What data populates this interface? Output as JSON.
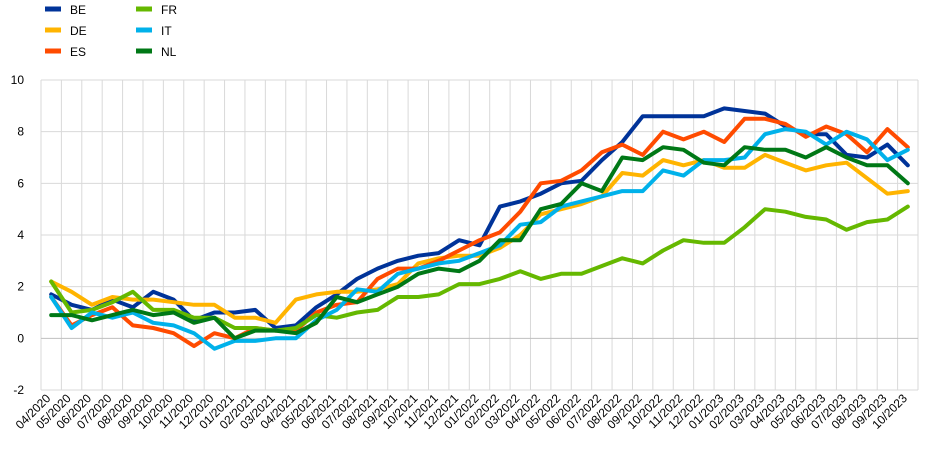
{
  "chart_data": {
    "type": "line",
    "title": "",
    "xlabel": "",
    "ylabel": "",
    "ylim": [
      -2,
      10
    ],
    "yticks": [
      "-2",
      "0",
      "2",
      "4",
      "6",
      "8",
      "10"
    ],
    "grid": true,
    "legend_position": "top-left",
    "x": [
      "04/2020",
      "05/2020",
      "06/2020",
      "07/2020",
      "08/2020",
      "09/2020",
      "10/2020",
      "11/2020",
      "12/2020",
      "01/2021",
      "02/2021",
      "03/2021",
      "04/2021",
      "05/2021",
      "06/2021",
      "07/2021",
      "08/2021",
      "09/2021",
      "10/2021",
      "11/2021",
      "12/2021",
      "01/2022",
      "02/2022",
      "03/2022",
      "04/2022",
      "05/2022",
      "06/2022",
      "07/2022",
      "08/2022",
      "09/2022",
      "10/2022",
      "11/2022",
      "12/2022",
      "01/2023",
      "02/2023",
      "03/2023",
      "04/2023",
      "05/2023",
      "06/2023",
      "07/2023",
      "08/2023",
      "09/2023",
      "10/2023"
    ],
    "series": [
      {
        "name": "BE",
        "color": "#003399",
        "values": [
          1.7,
          1.3,
          1.1,
          1.5,
          1.2,
          1.8,
          1.5,
          0.7,
          1.0,
          1.0,
          1.1,
          0.4,
          0.5,
          1.2,
          1.7,
          2.3,
          2.7,
          3.0,
          3.2,
          3.3,
          3.8,
          3.6,
          5.1,
          5.3,
          5.6,
          6.0,
          6.1,
          6.9,
          7.6,
          8.6,
          8.6,
          8.6,
          8.6,
          8.9,
          8.8,
          8.7,
          8.2,
          7.9,
          7.9,
          7.1,
          7.0,
          7.5,
          6.7
        ]
      },
      {
        "name": "DE",
        "color": "#ffb400",
        "values": [
          2.2,
          1.8,
          1.3,
          1.6,
          1.5,
          1.5,
          1.4,
          1.3,
          1.3,
          0.8,
          0.8,
          0.6,
          1.5,
          1.7,
          1.8,
          1.8,
          1.9,
          2.1,
          2.9,
          3.1,
          3.2,
          3.2,
          3.5,
          4.0,
          4.8,
          5.0,
          5.2,
          5.5,
          6.4,
          6.3,
          6.9,
          6.7,
          6.9,
          6.6,
          6.6,
          7.1,
          6.8,
          6.5,
          6.7,
          6.8,
          6.2,
          5.6,
          5.7
        ]
      },
      {
        "name": "ES",
        "color": "#ff4b00",
        "values": [
          1.6,
          0.5,
          0.9,
          1.2,
          0.5,
          0.4,
          0.2,
          -0.3,
          0.2,
          0.0,
          0.4,
          0.3,
          0.3,
          1.0,
          1.3,
          1.4,
          2.3,
          2.7,
          2.7,
          3.0,
          3.4,
          3.8,
          4.1,
          4.9,
          6.0,
          6.1,
          6.5,
          7.2,
          7.5,
          7.1,
          8.0,
          7.7,
          8.0,
          7.6,
          8.5,
          8.5,
          8.3,
          7.8,
          8.2,
          7.9,
          7.2,
          8.1,
          7.4
        ]
      },
      {
        "name": "FR",
        "color": "#65b800",
        "values": [
          2.2,
          1.0,
          1.1,
          1.4,
          1.8,
          1.1,
          1.1,
          0.8,
          0.8,
          0.4,
          0.4,
          0.3,
          0.4,
          0.9,
          0.8,
          1.0,
          1.1,
          1.6,
          1.6,
          1.7,
          2.1,
          2.1,
          2.3,
          2.6,
          2.3,
          2.5,
          2.5,
          2.8,
          3.1,
          2.9,
          3.4,
          3.8,
          3.7,
          3.7,
          4.3,
          5.0,
          4.9,
          4.7,
          4.6,
          4.2,
          4.5,
          4.6,
          5.1
        ]
      },
      {
        "name": "IT",
        "color": "#00b1ea",
        "values": [
          1.6,
          0.4,
          1.0,
          0.8,
          1.0,
          0.6,
          0.5,
          0.2,
          -0.4,
          -0.1,
          -0.1,
          0.0,
          0.0,
          0.7,
          1.1,
          1.9,
          1.8,
          2.5,
          2.7,
          2.9,
          3.0,
          3.3,
          3.6,
          4.4,
          4.5,
          5.1,
          5.3,
          5.5,
          5.7,
          5.7,
          6.5,
          6.3,
          6.9,
          6.9,
          7.0,
          7.9,
          8.1,
          8.0,
          7.5,
          8.0,
          7.7,
          6.9,
          7.3
        ]
      },
      {
        "name": "NL",
        "color": "#007816",
        "values": [
          0.9,
          0.9,
          0.7,
          0.9,
          1.1,
          0.9,
          1.0,
          0.6,
          0.8,
          0.0,
          0.3,
          0.3,
          0.2,
          0.6,
          1.6,
          1.4,
          1.7,
          2.0,
          2.5,
          2.7,
          2.6,
          3.0,
          3.8,
          3.8,
          5.0,
          5.2,
          6.0,
          5.7,
          7.0,
          6.9,
          7.4,
          7.3,
          6.8,
          6.7,
          7.4,
          7.3,
          7.3,
          7.0,
          7.4,
          7.0,
          6.7,
          6.7,
          6.0
        ]
      }
    ]
  }
}
